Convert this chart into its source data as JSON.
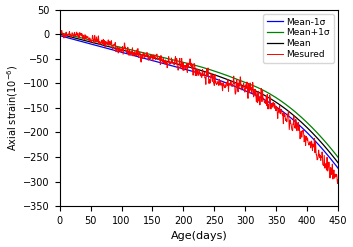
{
  "title": "",
  "xlabel": "Age(days)",
  "ylabel": "Axial strain(10$^{-6}$)",
  "xlim": [
    0,
    450
  ],
  "ylim": [
    -350,
    50
  ],
  "xticks": [
    0,
    50,
    100,
    150,
    200,
    250,
    300,
    350,
    400,
    450
  ],
  "yticks": [
    -350,
    -300,
    -250,
    -200,
    -150,
    -100,
    -50,
    0,
    50
  ],
  "legend": [
    "Mean-1σ",
    "Mean+1σ",
    "Mean",
    "Mesured"
  ],
  "line_colors": [
    "blue",
    "green",
    "black",
    "red"
  ],
  "background_color": "#ffffff",
  "seed": 42,
  "n_points": 900
}
